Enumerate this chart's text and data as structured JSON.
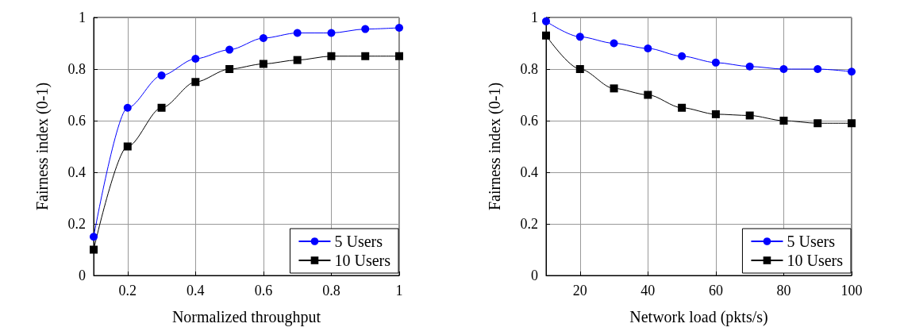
{
  "chart_data": [
    {
      "type": "line",
      "xlabel": "Normalized throughput",
      "ylabel": "Fairness index (0-1)",
      "x": [
        0.1,
        0.2,
        0.3,
        0.4,
        0.5,
        0.6,
        0.7,
        0.8,
        0.9,
        1
      ],
      "series": [
        {
          "name": "5 Users",
          "color": "#0000ff",
          "marker": "circle",
          "values": [
            0.15,
            0.65,
            0.775,
            0.84,
            0.875,
            0.92,
            0.94,
            0.94,
            0.955,
            0.96
          ]
        },
        {
          "name": "10 Users",
          "color": "#000000",
          "marker": "square",
          "values": [
            0.1,
            0.5,
            0.65,
            0.75,
            0.8,
            0.82,
            0.835,
            0.85,
            0.85,
            0.85
          ]
        }
      ],
      "xlim": [
        0.1,
        1
      ],
      "xticks": [
        0.2,
        0.4,
        0.6,
        0.8,
        1
      ],
      "ylim": [
        0,
        1
      ],
      "yticks": [
        0,
        0.2,
        0.4,
        0.6,
        0.8,
        1
      ],
      "grid": true,
      "legend": "bottom right"
    },
    {
      "type": "line",
      "xlabel": "Network load (pkts/s)",
      "ylabel": "Fairness index (0-1)",
      "x": [
        10,
        20,
        30,
        40,
        50,
        60,
        70,
        80,
        90,
        100
      ],
      "series": [
        {
          "name": "5 Users",
          "color": "#0000ff",
          "marker": "circle",
          "values": [
            0.985,
            0.925,
            0.9,
            0.88,
            0.85,
            0.825,
            0.81,
            0.8,
            0.8,
            0.79
          ]
        },
        {
          "name": "10 Users",
          "color": "#000000",
          "marker": "square",
          "values": [
            0.93,
            0.8,
            0.725,
            0.7,
            0.65,
            0.625,
            0.62,
            0.6,
            0.59,
            0.59
          ]
        }
      ],
      "xlim": [
        10,
        100
      ],
      "xticks": [
        20,
        40,
        60,
        80,
        100
      ],
      "ylim": [
        0,
        1
      ],
      "yticks": [
        0,
        0.2,
        0.4,
        0.6,
        0.8,
        1
      ],
      "grid": true,
      "legend": "bottom right"
    }
  ]
}
